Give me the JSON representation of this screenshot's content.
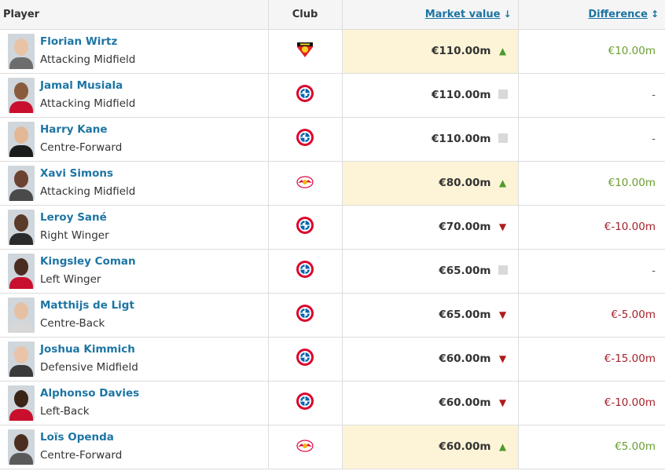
{
  "header": {
    "player": "Player",
    "club": "Club",
    "market_value": "Market value",
    "market_value_sort_icon": "↓",
    "difference": "Difference",
    "difference_sort_icon": "↕"
  },
  "colors": {
    "link": "#1d75a3",
    "up": "#4e9a2b",
    "down": "#b01b1b",
    "highlight": "#fdf4d7"
  },
  "rows": [
    {
      "name": "Florian Wirtz",
      "position": "Attacking Midfield",
      "club_icon": "leverkusen-crest-icon",
      "value": "€110.00m",
      "trend": "up",
      "difference": "€10.00m",
      "highlight": true
    },
    {
      "name": "Jamal Musiala",
      "position": "Attacking Midfield",
      "club_icon": "bayern-crest-icon",
      "value": "€110.00m",
      "trend": "same",
      "difference": "-",
      "highlight": false
    },
    {
      "name": "Harry Kane",
      "position": "Centre-Forward",
      "club_icon": "bayern-crest-icon",
      "value": "€110.00m",
      "trend": "same",
      "difference": "-",
      "highlight": false
    },
    {
      "name": "Xavi Simons",
      "position": "Attacking Midfield",
      "club_icon": "leipzig-crest-icon",
      "value": "€80.00m",
      "trend": "up",
      "difference": "€10.00m",
      "highlight": true
    },
    {
      "name": "Leroy Sané",
      "position": "Right Winger",
      "club_icon": "bayern-crest-icon",
      "value": "€70.00m",
      "trend": "down",
      "difference": "€-10.00m",
      "highlight": false
    },
    {
      "name": "Kingsley Coman",
      "position": "Left Winger",
      "club_icon": "bayern-crest-icon",
      "value": "€65.00m",
      "trend": "same",
      "difference": "-",
      "highlight": false
    },
    {
      "name": "Matthijs de Ligt",
      "position": "Centre-Back",
      "club_icon": "bayern-crest-icon",
      "value": "€65.00m",
      "trend": "down",
      "difference": "€-5.00m",
      "highlight": false
    },
    {
      "name": "Joshua Kimmich",
      "position": "Defensive Midfield",
      "club_icon": "bayern-crest-icon",
      "value": "€60.00m",
      "trend": "down",
      "difference": "€-15.00m",
      "highlight": false
    },
    {
      "name": "Alphonso Davies",
      "position": "Left-Back",
      "club_icon": "bayern-crest-icon",
      "value": "€60.00m",
      "trend": "down",
      "difference": "€-10.00m",
      "highlight": false
    },
    {
      "name": "Loïs Openda",
      "position": "Centre-Forward",
      "club_icon": "leipzig-crest-icon",
      "value": "€60.00m",
      "trend": "up",
      "difference": "€5.00m",
      "highlight": true
    }
  ]
}
